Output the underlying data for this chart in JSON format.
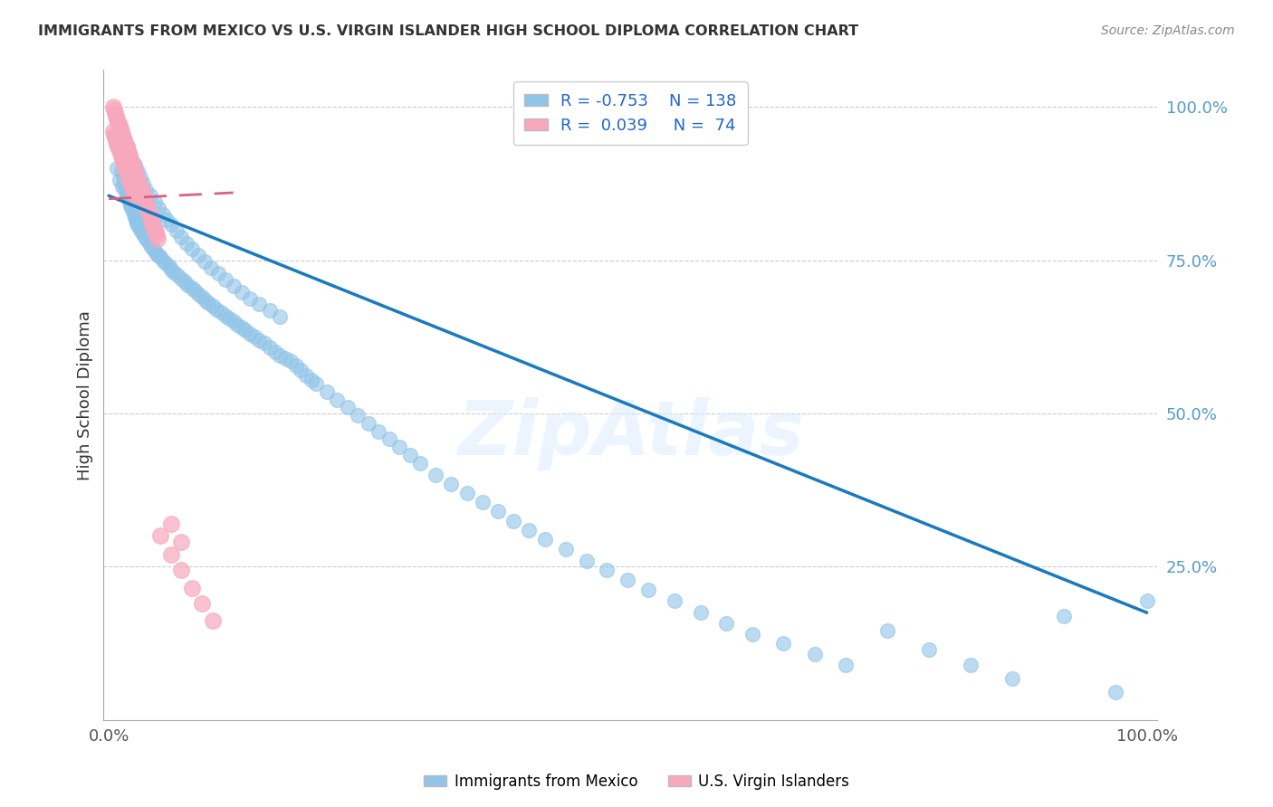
{
  "title": "IMMIGRANTS FROM MEXICO VS U.S. VIRGIN ISLANDER HIGH SCHOOL DIPLOMA CORRELATION CHART",
  "source": "Source: ZipAtlas.com",
  "ylabel": "High School Diploma",
  "legend_label1": "Immigrants from Mexico",
  "legend_label2": "U.S. Virgin Islanders",
  "R1": "-0.753",
  "N1": "138",
  "R2": "0.039",
  "N2": "74",
  "color_blue": "#90c4e8",
  "color_pink": "#f7a8bc",
  "line_color_blue": "#1a7abf",
  "line_color_pink": "#d96080",
  "watermark": "ZipAtlas",
  "blue_scatter_x": [
    0.008,
    0.01,
    0.012,
    0.013,
    0.014,
    0.015,
    0.016,
    0.017,
    0.018,
    0.019,
    0.02,
    0.021,
    0.022,
    0.023,
    0.024,
    0.025,
    0.026,
    0.027,
    0.028,
    0.029,
    0.03,
    0.032,
    0.034,
    0.036,
    0.038,
    0.04,
    0.042,
    0.044,
    0.046,
    0.048,
    0.05,
    0.052,
    0.055,
    0.058,
    0.06,
    0.063,
    0.066,
    0.07,
    0.073,
    0.076,
    0.08,
    0.083,
    0.086,
    0.09,
    0.093,
    0.096,
    0.1,
    0.104,
    0.108,
    0.112,
    0.116,
    0.12,
    0.124,
    0.128,
    0.132,
    0.136,
    0.14,
    0.145,
    0.15,
    0.155,
    0.16,
    0.165,
    0.17,
    0.175,
    0.18,
    0.185,
    0.19,
    0.195,
    0.2,
    0.21,
    0.22,
    0.23,
    0.24,
    0.25,
    0.26,
    0.27,
    0.28,
    0.29,
    0.3,
    0.315,
    0.33,
    0.345,
    0.36,
    0.375,
    0.39,
    0.405,
    0.42,
    0.44,
    0.46,
    0.48,
    0.5,
    0.52,
    0.545,
    0.57,
    0.595,
    0.62,
    0.65,
    0.68,
    0.71,
    0.75,
    0.79,
    0.83,
    0.87,
    0.92,
    0.97,
    1.0,
    0.01,
    0.012,
    0.014,
    0.016,
    0.018,
    0.02,
    0.022,
    0.025,
    0.028,
    0.03,
    0.033,
    0.036,
    0.04,
    0.044,
    0.048,
    0.052,
    0.056,
    0.06,
    0.065,
    0.07,
    0.075,
    0.08,
    0.086,
    0.092,
    0.098,
    0.105,
    0.112,
    0.12,
    0.128,
    0.136,
    0.145,
    0.155,
    0.165
  ],
  "blue_scatter_y": [
    0.9,
    0.88,
    0.895,
    0.87,
    0.885,
    0.875,
    0.865,
    0.855,
    0.86,
    0.85,
    0.845,
    0.84,
    0.835,
    0.83,
    0.825,
    0.82,
    0.815,
    0.81,
    0.808,
    0.805,
    0.8,
    0.795,
    0.79,
    0.785,
    0.78,
    0.775,
    0.77,
    0.765,
    0.76,
    0.758,
    0.755,
    0.75,
    0.745,
    0.74,
    0.735,
    0.73,
    0.725,
    0.72,
    0.715,
    0.71,
    0.705,
    0.7,
    0.695,
    0.69,
    0.685,
    0.68,
    0.675,
    0.67,
    0.665,
    0.66,
    0.655,
    0.65,
    0.645,
    0.64,
    0.635,
    0.63,
    0.625,
    0.62,
    0.615,
    0.608,
    0.6,
    0.595,
    0.59,
    0.585,
    0.578,
    0.57,
    0.562,
    0.555,
    0.548,
    0.535,
    0.522,
    0.51,
    0.497,
    0.484,
    0.47,
    0.458,
    0.445,
    0.432,
    0.418,
    0.4,
    0.385,
    0.37,
    0.355,
    0.34,
    0.325,
    0.31,
    0.295,
    0.278,
    0.26,
    0.245,
    0.228,
    0.212,
    0.194,
    0.175,
    0.158,
    0.14,
    0.125,
    0.108,
    0.09,
    0.145,
    0.115,
    0.09,
    0.068,
    0.17,
    0.045,
    0.195,
    0.94,
    0.96,
    0.95,
    0.945,
    0.935,
    0.925,
    0.915,
    0.905,
    0.895,
    0.885,
    0.875,
    0.865,
    0.855,
    0.845,
    0.835,
    0.825,
    0.815,
    0.808,
    0.798,
    0.788,
    0.778,
    0.768,
    0.758,
    0.748,
    0.738,
    0.728,
    0.718,
    0.708,
    0.698,
    0.688,
    0.678,
    0.668,
    0.658
  ],
  "pink_scatter_x": [
    0.004,
    0.005,
    0.006,
    0.007,
    0.008,
    0.009,
    0.01,
    0.011,
    0.012,
    0.013,
    0.014,
    0.015,
    0.016,
    0.017,
    0.018,
    0.019,
    0.02,
    0.021,
    0.022,
    0.023,
    0.024,
    0.025,
    0.026,
    0.027,
    0.028,
    0.029,
    0.03,
    0.031,
    0.032,
    0.033,
    0.034,
    0.035,
    0.036,
    0.037,
    0.038,
    0.039,
    0.04,
    0.041,
    0.042,
    0.043,
    0.044,
    0.045,
    0.046,
    0.047,
    0.004,
    0.005,
    0.006,
    0.007,
    0.008,
    0.009,
    0.01,
    0.011,
    0.012,
    0.013,
    0.014,
    0.015,
    0.016,
    0.017,
    0.018,
    0.019,
    0.02,
    0.021,
    0.022,
    0.023,
    0.024,
    0.025,
    0.05,
    0.06,
    0.07,
    0.08,
    0.09,
    0.1,
    0.06,
    0.07
  ],
  "pink_scatter_y": [
    1.0,
    0.995,
    0.99,
    0.985,
    0.98,
    0.975,
    0.97,
    0.965,
    0.96,
    0.955,
    0.95,
    0.945,
    0.94,
    0.935,
    0.93,
    0.925,
    0.92,
    0.915,
    0.91,
    0.905,
    0.9,
    0.895,
    0.89,
    0.885,
    0.88,
    0.875,
    0.87,
    0.865,
    0.86,
    0.855,
    0.85,
    0.845,
    0.84,
    0.835,
    0.83,
    0.825,
    0.82,
    0.815,
    0.81,
    0.805,
    0.8,
    0.795,
    0.79,
    0.785,
    0.96,
    0.955,
    0.95,
    0.945,
    0.94,
    0.935,
    0.93,
    0.925,
    0.92,
    0.915,
    0.91,
    0.905,
    0.9,
    0.895,
    0.89,
    0.885,
    0.88,
    0.875,
    0.87,
    0.865,
    0.86,
    0.855,
    0.3,
    0.27,
    0.245,
    0.215,
    0.19,
    0.162,
    0.32,
    0.29
  ],
  "blue_line_x": [
    0.0,
    1.0
  ],
  "blue_line_y": [
    0.855,
    0.175
  ],
  "pink_line_x": [
    0.0,
    0.12
  ],
  "pink_line_y": [
    0.85,
    0.86
  ],
  "xlim": [
    0.0,
    1.0
  ],
  "ylim": [
    0.0,
    1.05
  ]
}
